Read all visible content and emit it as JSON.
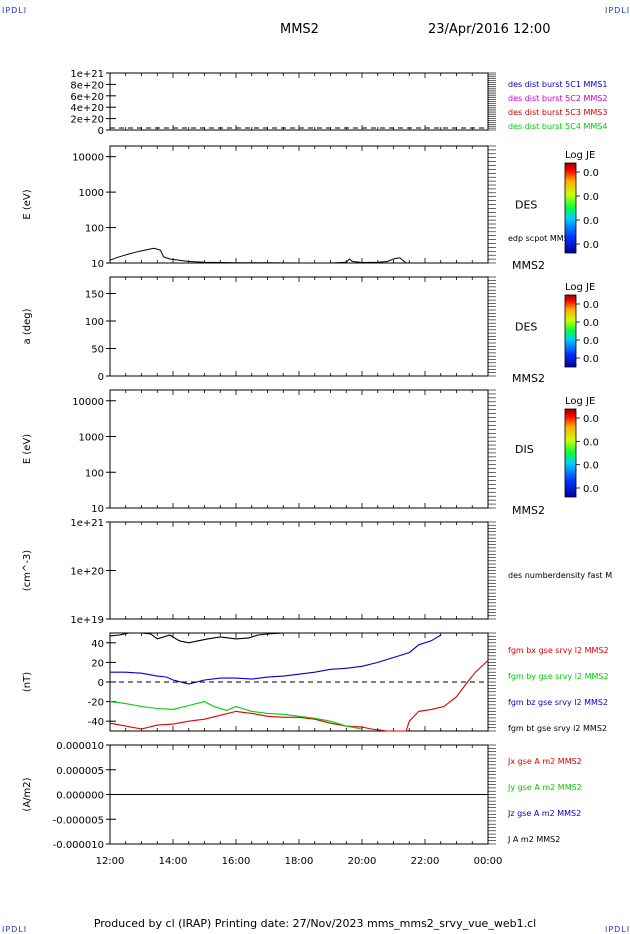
{
  "header": {
    "corner_tl": "IPDLI",
    "corner_tr": "IPDLI",
    "corner_bl": "IPDLI",
    "corner_br": "IPDLI",
    "title": "MMS2",
    "date": "23/Apr/2016 12:00"
  },
  "footer": {
    "text": "Produced by cl (IRAP)   Printing date: 27/Nov/2023   mms_mms2_srvy_vue_web1.cl"
  },
  "chart_data": [
    {
      "type": "line",
      "panel": "dist-burst",
      "ylabel": "",
      "yticks": [
        "1e+21",
        "8e+20",
        "6e+20",
        "4e+20",
        "2e+20",
        "0"
      ],
      "ylim": [
        0,
        1e+21
      ],
      "series": [
        {
          "name": "des dist burst 5C1 MMS1",
          "color": "#0000cc",
          "values": []
        },
        {
          "name": "des dist burst 5C2 MMS2",
          "color": "#cc00cc",
          "values": []
        },
        {
          "name": "des dist burst 5C3 MMS3",
          "color": "#cc0000",
          "values": []
        },
        {
          "name": "des dist burst 5C4 MMS4",
          "color": "#00cc00",
          "values": []
        }
      ]
    },
    {
      "type": "heatmap",
      "panel": "des-energy",
      "ylabel": "E (eV)",
      "yscale": "log",
      "yticks": [
        "10000",
        "1000",
        "100",
        "10"
      ],
      "ylim": [
        10,
        20000
      ],
      "label": "DES",
      "satellite": "MMS2",
      "overlay_label": "edp scpot MMS2",
      "colorbar": {
        "title": "Log JE",
        "ticks": [
          "0.0",
          "0.0",
          "0.0",
          "0.0"
        ]
      },
      "overlay_series": {
        "name": "edp scpot MMS2",
        "color": "#000000",
        "points": [
          [
            0,
            12
          ],
          [
            0.2,
            14
          ],
          [
            0.4,
            16
          ],
          [
            0.6,
            18
          ],
          [
            0.8,
            20
          ],
          [
            1.0,
            22
          ],
          [
            1.2,
            24
          ],
          [
            1.4,
            26
          ],
          [
            1.6,
            23
          ],
          [
            1.7,
            15
          ],
          [
            1.9,
            13
          ],
          [
            2.2,
            12
          ],
          [
            2.5,
            11
          ],
          [
            3.0,
            10.5
          ],
          [
            3.5,
            10.3
          ],
          [
            4.0,
            10.2
          ],
          [
            5.0,
            10.1
          ],
          [
            6.0,
            10
          ],
          [
            7.0,
            10
          ],
          [
            7.5,
            10.5
          ],
          [
            7.6,
            13
          ],
          [
            7.7,
            11
          ],
          [
            8.0,
            10.3
          ],
          [
            8.5,
            10.5
          ],
          [
            8.8,
            11
          ],
          [
            9.0,
            13
          ],
          [
            9.2,
            14
          ],
          [
            9.4,
            10
          ]
        ]
      }
    },
    {
      "type": "heatmap",
      "panel": "des-pitch",
      "ylabel": "a (deg)",
      "yticks": [
        "150",
        "100",
        "50",
        "0"
      ],
      "ylim": [
        0,
        180
      ],
      "label": "DES",
      "satellite": "MMS2",
      "colorbar": {
        "title": "Log JE",
        "ticks": [
          "0.0",
          "0.0",
          "0.0",
          "0.0"
        ]
      }
    },
    {
      "type": "heatmap",
      "panel": "dis-energy",
      "ylabel": "E (eV)",
      "yscale": "log",
      "yticks": [
        "10000",
        "1000",
        "100",
        "10"
      ],
      "ylim": [
        10,
        20000
      ],
      "label": "DIS",
      "satellite": "MMS2",
      "colorbar": {
        "title": "Log JE",
        "ticks": [
          "0.0",
          "0.0",
          "0.0",
          "0.0"
        ]
      }
    },
    {
      "type": "line",
      "panel": "numberdensity",
      "ylabel": "(cm^-3)",
      "yscale": "log",
      "yticks": [
        "1e+21",
        "1e+20",
        "1e+19"
      ],
      "ylim": [
        1e+19,
        1e+21
      ],
      "series": [
        {
          "name": "des numberdensity fast M",
          "color": "#000000",
          "values": []
        }
      ]
    },
    {
      "type": "line",
      "panel": "fgm",
      "ylabel": "(nT)",
      "yticks": [
        "40",
        "20",
        "0",
        "-20",
        "-40"
      ],
      "ylim": [
        -50,
        50
      ],
      "series": [
        {
          "name": "fgm bx gse srvy l2 MMS2",
          "color": "#dd0000",
          "points": [
            [
              0,
              -42
            ],
            [
              0.5,
              -45
            ],
            [
              1.0,
              -48
            ],
            [
              1.5,
              -44
            ],
            [
              2.0,
              -43
            ],
            [
              2.5,
              -40
            ],
            [
              3.0,
              -38
            ],
            [
              3.5,
              -34
            ],
            [
              4.0,
              -30
            ],
            [
              4.5,
              -32
            ],
            [
              5.0,
              -35
            ],
            [
              5.5,
              -36
            ],
            [
              6.0,
              -36
            ],
            [
              6.5,
              -38
            ],
            [
              7.0,
              -42
            ],
            [
              7.5,
              -45
            ],
            [
              8.0,
              -46
            ],
            [
              8.3,
              -48
            ],
            [
              8.8,
              -50
            ],
            [
              9.4,
              -50
            ],
            [
              9.5,
              -40
            ],
            [
              9.8,
              -30
            ],
            [
              10.2,
              -28
            ],
            [
              10.6,
              -25
            ],
            [
              11.0,
              -15
            ],
            [
              11.3,
              -2
            ],
            [
              11.6,
              10
            ],
            [
              12.0,
              22
            ]
          ]
        },
        {
          "name": "fgm by gse srvy l2 MMS2",
          "color": "#00cc00",
          "points": [
            [
              0,
              -20
            ],
            [
              0.5,
              -22
            ],
            [
              1.0,
              -25
            ],
            [
              1.5,
              -27
            ],
            [
              2.0,
              -28
            ],
            [
              2.5,
              -24
            ],
            [
              3.0,
              -20
            ],
            [
              3.3,
              -25
            ],
            [
              3.7,
              -29
            ],
            [
              4.0,
              -25
            ],
            [
              4.5,
              -30
            ],
            [
              5.0,
              -32
            ],
            [
              5.5,
              -33
            ],
            [
              6.0,
              -35
            ],
            [
              6.5,
              -37
            ],
            [
              7.0,
              -40
            ],
            [
              7.5,
              -45
            ],
            [
              8.0,
              -48
            ]
          ]
        },
        {
          "name": "fgm bz gse srvy l2 MMS2",
          "color": "#0000cc",
          "points": [
            [
              0,
              10
            ],
            [
              0.5,
              10
            ],
            [
              1.0,
              9
            ],
            [
              1.5,
              6
            ],
            [
              1.8,
              5
            ],
            [
              2.0,
              2
            ],
            [
              2.5,
              -2
            ],
            [
              3.0,
              2
            ],
            [
              3.5,
              4
            ],
            [
              4.0,
              4
            ],
            [
              4.5,
              3
            ],
            [
              5.0,
              5
            ],
            [
              5.5,
              6
            ],
            [
              6.0,
              8
            ],
            [
              6.5,
              10
            ],
            [
              7.0,
              13
            ],
            [
              7.5,
              14
            ],
            [
              8.0,
              16
            ],
            [
              8.5,
              20
            ],
            [
              9.0,
              25
            ],
            [
              9.5,
              30
            ],
            [
              9.8,
              38
            ],
            [
              10.2,
              42
            ],
            [
              10.5,
              48
            ]
          ]
        },
        {
          "name": "fgm bt gse srvy l2 MMS2",
          "color": "#000000",
          "points": [
            [
              0,
              47
            ],
            [
              0.3,
              48
            ],
            [
              0.6,
              50
            ],
            [
              1.0,
              50
            ],
            [
              1.3,
              49
            ],
            [
              1.5,
              44
            ],
            [
              1.9,
              48
            ],
            [
              2.2,
              42
            ],
            [
              2.5,
              40
            ],
            [
              2.8,
              42
            ],
            [
              3.1,
              44
            ],
            [
              3.5,
              46
            ],
            [
              4.0,
              44
            ],
            [
              4.4,
              45
            ],
            [
              4.7,
              48
            ],
            [
              5.0,
              49
            ],
            [
              5.5,
              50
            ],
            [
              5.7,
              50
            ]
          ]
        },
        {
          "name": "",
          "color": "#000000",
          "dashed": true,
          "points": [
            [
              0,
              0
            ],
            [
              12,
              0
            ]
          ]
        }
      ]
    },
    {
      "type": "line",
      "panel": "current",
      "ylabel": "(A/m2)",
      "yticks": [
        "0.000010",
        "0.000005",
        "0.000000",
        "-0.000005",
        "-0.000010"
      ],
      "ylim": [
        -1e-05,
        1e-05
      ],
      "xticks": [
        "12:00",
        "14:00",
        "16:00",
        "18:00",
        "20:00",
        "22:00",
        "00:00"
      ],
      "series": [
        {
          "name": "Jx gse A m2 MMS2",
          "color": "#dd0000",
          "points": [
            [
              0,
              0
            ],
            [
              12,
              0
            ]
          ]
        },
        {
          "name": "Jy gse A m2 MMS2",
          "color": "#00cc00",
          "points": [
            [
              0,
              0
            ],
            [
              12,
              0
            ]
          ]
        },
        {
          "name": "Jz gse A m2 MMS2",
          "color": "#0000cc",
          "points": [
            [
              0,
              0
            ],
            [
              12,
              0
            ]
          ]
        },
        {
          "name": "J A m2 MMS2",
          "color": "#000000",
          "points": [
            [
              0,
              0
            ],
            [
              12,
              0
            ]
          ]
        }
      ]
    }
  ]
}
